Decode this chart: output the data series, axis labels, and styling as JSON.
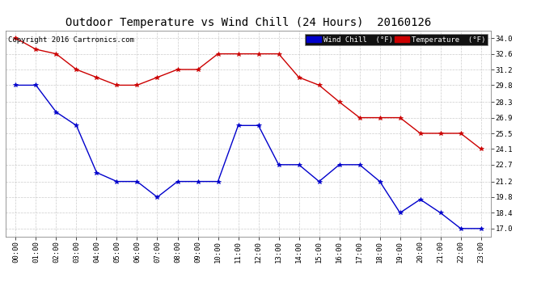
{
  "title": "Outdoor Temperature vs Wind Chill (24 Hours)  20160126",
  "copyright_text": "Copyright 2016 Cartronics.com",
  "legend_wind_chill": "Wind Chill  (°F)",
  "legend_temperature": "Temperature  (°F)",
  "x_labels": [
    "00:00",
    "01:00",
    "02:00",
    "03:00",
    "04:00",
    "05:00",
    "06:00",
    "07:00",
    "08:00",
    "09:00",
    "10:00",
    "11:00",
    "12:00",
    "13:00",
    "14:00",
    "15:00",
    "16:00",
    "17:00",
    "18:00",
    "19:00",
    "20:00",
    "21:00",
    "22:00",
    "23:00"
  ],
  "temperature": [
    34.0,
    33.0,
    32.6,
    31.2,
    30.5,
    29.8,
    29.8,
    30.5,
    31.2,
    31.2,
    32.6,
    32.6,
    32.6,
    32.6,
    30.5,
    29.8,
    28.3,
    26.9,
    26.9,
    26.9,
    25.5,
    25.5,
    25.5,
    24.1
  ],
  "wind_chill": [
    29.8,
    29.8,
    27.4,
    26.2,
    22.0,
    21.2,
    21.2,
    19.8,
    21.2,
    21.2,
    21.2,
    26.2,
    26.2,
    22.7,
    22.7,
    21.2,
    22.7,
    22.7,
    21.2,
    18.4,
    19.6,
    18.4,
    17.0,
    17.0
  ],
  "y_ticks": [
    17.0,
    18.4,
    19.8,
    21.2,
    22.7,
    24.1,
    25.5,
    26.9,
    28.3,
    29.8,
    31.2,
    32.6,
    34.0
  ],
  "y_min": 16.3,
  "y_max": 34.7,
  "temp_color": "#cc0000",
  "wind_color": "#0000cc",
  "bg_color": "#ffffff",
  "grid_color": "#c0c0c0",
  "title_fontsize": 10,
  "tick_fontsize": 6.5,
  "copyright_fontsize": 6.5
}
